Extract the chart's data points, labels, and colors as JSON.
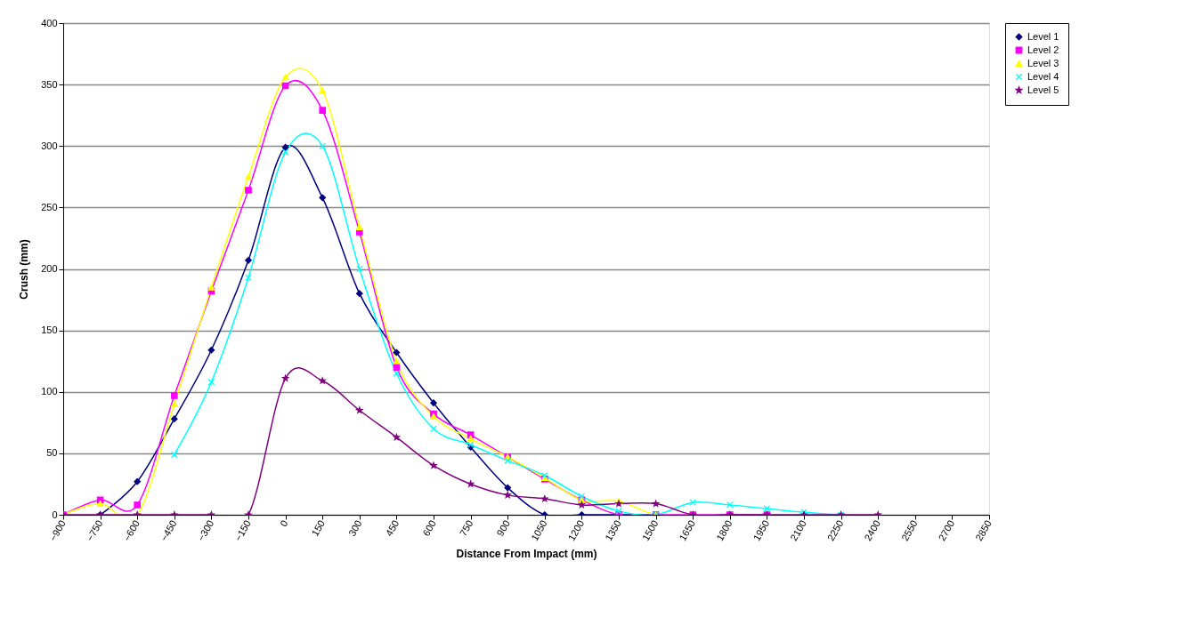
{
  "chart_data": {
    "type": "line",
    "xlabel": "Distance From Impact (mm)",
    "ylabel": "Crush (mm)",
    "x": [
      -900,
      -750,
      -600,
      -450,
      -300,
      -150,
      0,
      150,
      300,
      450,
      600,
      750,
      900,
      1050,
      1200,
      1350,
      1500,
      1650,
      1800,
      1950,
      2100,
      2250,
      2400
    ],
    "series": [
      {
        "name": "Level 1",
        "color": "#000080",
        "marker": "diamond",
        "values": [
          null,
          0,
          27,
          78,
          134,
          207,
          299,
          258,
          180,
          132,
          91,
          55,
          22,
          0,
          0,
          0,
          0,
          null,
          null,
          null,
          null,
          null,
          null
        ]
      },
      {
        "name": "Level 2",
        "color": "#ff00ff",
        "marker": "square",
        "values": [
          0,
          12,
          8,
          97,
          182,
          264,
          349,
          329,
          230,
          120,
          82,
          65,
          47,
          29,
          12,
          0,
          0,
          0,
          0,
          0,
          null,
          null,
          null
        ]
      },
      {
        "name": "Level 3",
        "color": "#ffff00",
        "marker": "triangle",
        "values": [
          0,
          9,
          0,
          90,
          185,
          275,
          356,
          345,
          234,
          125,
          80,
          62,
          47,
          30,
          12,
          11,
          0,
          0,
          null,
          null,
          null,
          null,
          null
        ]
      },
      {
        "name": "Level 4",
        "color": "#00ffff",
        "marker": "cross",
        "values": [
          null,
          null,
          null,
          49,
          108,
          193,
          295,
          300,
          200,
          115,
          70,
          57,
          44,
          32,
          15,
          3,
          0,
          10,
          8,
          5,
          2,
          0,
          null
        ]
      },
      {
        "name": "Level 5",
        "color": "#800080",
        "marker": "star",
        "values": [
          0,
          0,
          0,
          0,
          0,
          0,
          111,
          109,
          85,
          63,
          40,
          25,
          16,
          13,
          8,
          9,
          9,
          0,
          0,
          0,
          0,
          0,
          0
        ]
      }
    ],
    "xlim": [
      -900,
      2850
    ],
    "xticks": [
      -900,
      -750,
      -600,
      -450,
      -300,
      -150,
      0,
      150,
      300,
      450,
      600,
      750,
      900,
      1050,
      1200,
      1350,
      1500,
      1650,
      1800,
      1950,
      2100,
      2250,
      2400,
      2550,
      2700,
      2850
    ],
    "ylim": [
      0,
      400
    ],
    "yticks": [
      0,
      50,
      100,
      150,
      200,
      250,
      300,
      350,
      400
    ],
    "grid": "y",
    "legend": "right",
    "line_style": "solid"
  }
}
